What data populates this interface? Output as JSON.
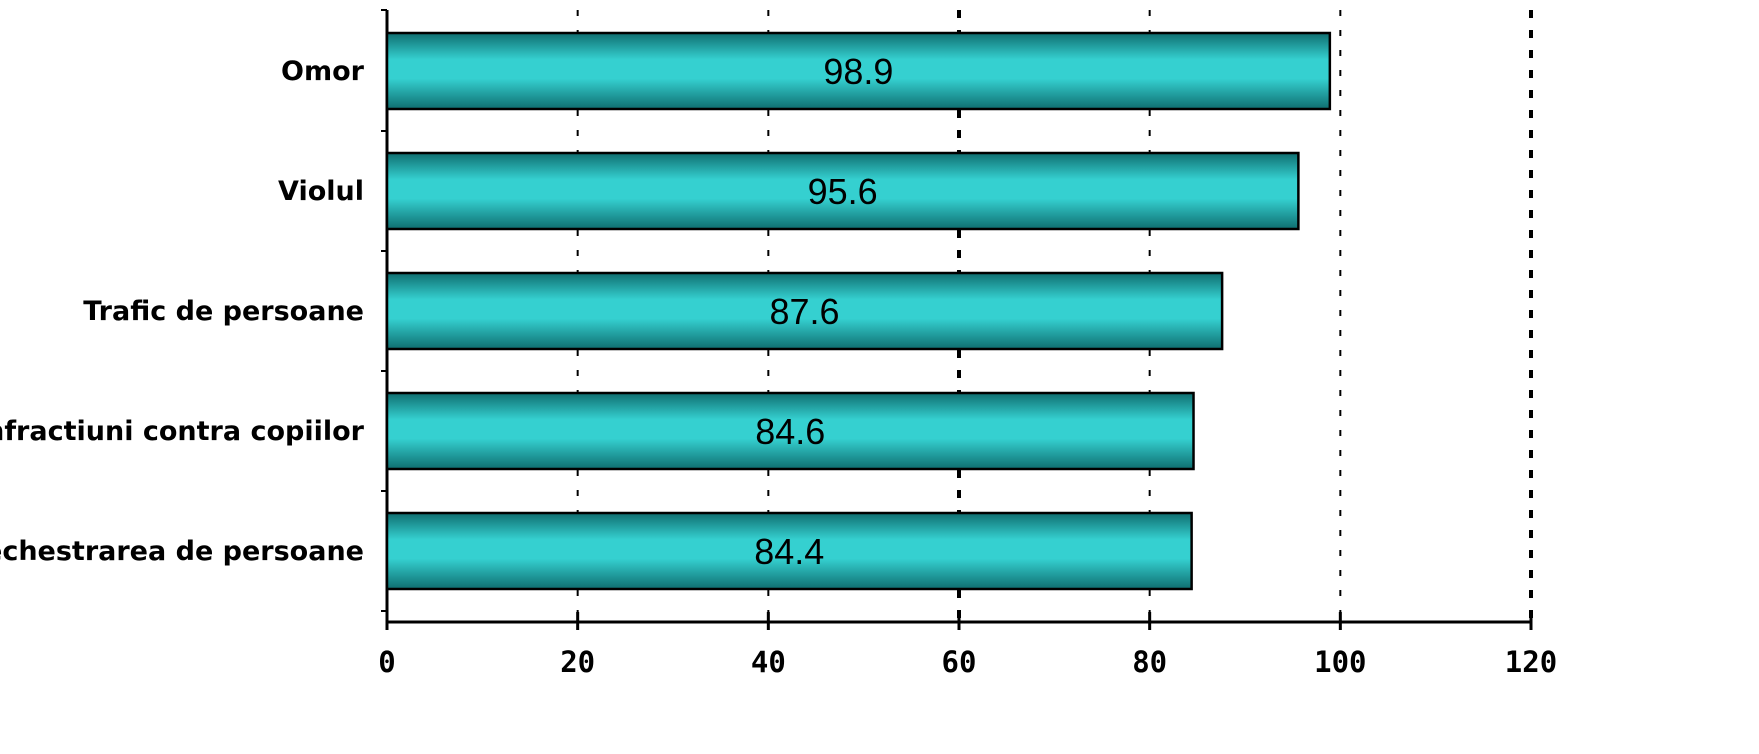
{
  "chart_data": {
    "type": "bar",
    "orientation": "horizontal",
    "categories": [
      "Omor",
      "Violul",
      "Trafic de persoane",
      "Infractiuni contra copiilor",
      "Sechestrarea de persoane"
    ],
    "values": [
      98.9,
      95.6,
      87.6,
      84.6,
      84.4
    ],
    "value_labels": [
      "98.9",
      "95.6",
      "87.6",
      "84.6",
      "84.4"
    ],
    "x_ticks": [
      "0",
      "20",
      "40",
      "60",
      "80",
      "100",
      "120"
    ],
    "xlim": [
      0,
      120
    ],
    "grid": true,
    "title": "",
    "xlabel": "",
    "ylabel": "",
    "colors": {
      "bar_light": "#35d0d0",
      "bar_dark": "#0f6e70",
      "bar_border": "#000000",
      "grid": "#000000"
    }
  }
}
